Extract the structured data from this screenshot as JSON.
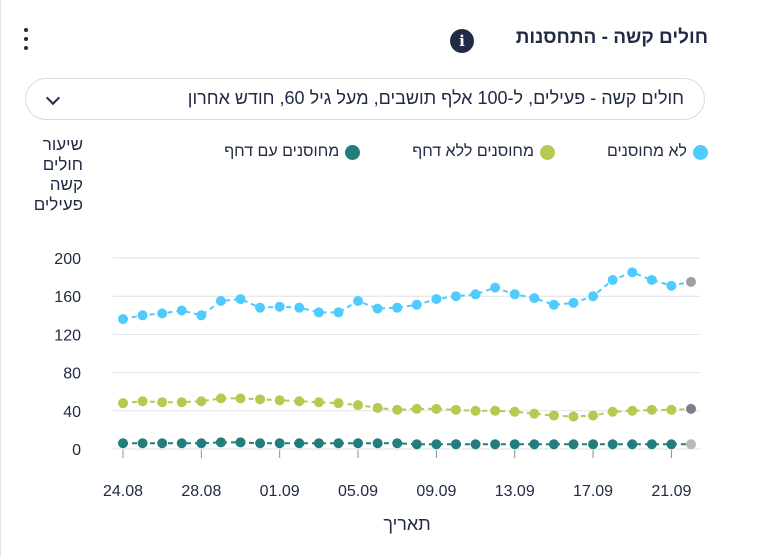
{
  "header": {
    "title": "חולים קשה - התחסנות",
    "info_icon": "i"
  },
  "filter": {
    "selected": "חולים קשה - פעילים, ל-100 אלף תושבים, מעל גיל 60, חודש אחרון"
  },
  "colors": {
    "unvaccinated": "#50cbfd",
    "vaccinated_no_booster": "#b6ca51",
    "vaccinated_booster": "#237d7d",
    "last_point": "#a0a0a0",
    "grid": "#dfe2e8"
  },
  "chart_data": {
    "type": "line",
    "ylabel": "שיעור חולים קשה פעילים",
    "xlabel": "תאריך",
    "ylim": [
      0,
      200
    ],
    "yticks": [
      0,
      40,
      80,
      120,
      160,
      200
    ],
    "grid": true,
    "legend_position": "top-right",
    "x": [
      "24.08",
      "25.08",
      "26.08",
      "27.08",
      "28.08",
      "29.08",
      "30.08",
      "31.08",
      "01.09",
      "02.09",
      "03.09",
      "04.09",
      "05.09",
      "06.09",
      "07.09",
      "08.09",
      "09.09",
      "10.09",
      "11.09",
      "12.09",
      "13.09",
      "14.09",
      "15.09",
      "16.09",
      "17.09",
      "18.09",
      "19.09",
      "20.09",
      "21.09",
      "22.09"
    ],
    "xtick_labels": [
      "24.08",
      "28.08",
      "01.09",
      "05.09",
      "09.09",
      "13.09",
      "17.09",
      "21.09"
    ],
    "series": [
      {
        "name": "לא מחוסנים",
        "values": [
          136,
          140,
          142,
          145,
          140,
          155,
          157,
          148,
          149,
          148,
          143,
          143,
          155,
          147,
          148,
          151,
          157,
          160,
          162,
          169,
          162,
          158,
          151,
          153,
          160,
          177,
          185,
          177,
          171,
          175
        ]
      },
      {
        "name": "מחוסנים ללא דחף",
        "values": [
          48,
          50,
          49,
          49,
          50,
          53,
          53,
          52,
          51,
          50,
          49,
          48,
          46,
          43,
          41,
          42,
          42,
          41,
          40,
          40,
          39,
          37,
          35,
          34,
          35,
          39,
          40,
          41,
          41,
          42
        ]
      },
      {
        "name": "מחוסנים עם דחף",
        "values": [
          6,
          6,
          6,
          6,
          6,
          7,
          7,
          6,
          6,
          6,
          6,
          6,
          6,
          6,
          6,
          5,
          5,
          5,
          5,
          5,
          5,
          5,
          5,
          5,
          5,
          5,
          5,
          5,
          5,
          5
        ]
      }
    ]
  }
}
